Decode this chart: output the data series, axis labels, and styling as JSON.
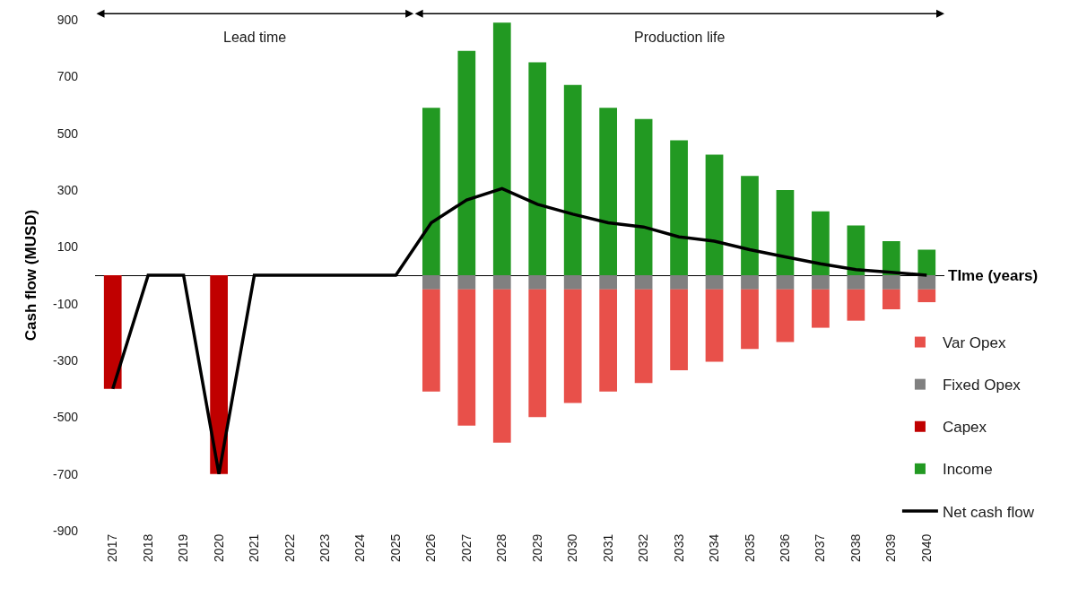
{
  "chart_data": {
    "type": "bar",
    "stacked": true,
    "categories": [
      "2017",
      "2018",
      "2019",
      "2020",
      "2021",
      "2022",
      "2023",
      "2024",
      "2025",
      "2026",
      "2027",
      "2028",
      "2029",
      "2030",
      "2031",
      "2032",
      "2033",
      "2034",
      "2035",
      "2036",
      "2037",
      "2038",
      "2039",
      "2040"
    ],
    "xlabel": "TIme (years)",
    "ylabel": "Cash flow (MUSD)",
    "ylim": [
      -900,
      900
    ],
    "yticks": [
      -900,
      -700,
      -500,
      -300,
      -100,
      100,
      300,
      500,
      700,
      900
    ],
    "legend": "bottom right",
    "annotations": [
      "Lead time",
      "Production life"
    ],
    "series": [
      {
        "name": "Net cash flow",
        "type": "line",
        "color": "#000000",
        "values": [
          -400,
          0,
          0,
          -700,
          0,
          0,
          0,
          0,
          0,
          185,
          265,
          305,
          250,
          215,
          185,
          170,
          135,
          120,
          90,
          65,
          40,
          20,
          10,
          0
        ]
      },
      {
        "name": "Income",
        "color": "#229922",
        "values": [
          null,
          null,
          null,
          null,
          null,
          null,
          null,
          null,
          null,
          590,
          790,
          890,
          750,
          670,
          590,
          550,
          475,
          425,
          350,
          300,
          225,
          175,
          120,
          90
        ]
      },
      {
        "name": "Capex",
        "color": "#c00000",
        "values": [
          -400,
          null,
          null,
          -700,
          null,
          null,
          null,
          null,
          null,
          null,
          null,
          null,
          null,
          null,
          null,
          null,
          null,
          null,
          null,
          null,
          null,
          null,
          null,
          null
        ]
      },
      {
        "name": "Fixed Opex",
        "color": "#808080",
        "values": [
          null,
          null,
          null,
          null,
          null,
          null,
          null,
          null,
          null,
          -50,
          -50,
          -50,
          -50,
          -50,
          -50,
          -50,
          -50,
          -50,
          -50,
          -50,
          -50,
          -50,
          -50,
          -50
        ]
      },
      {
        "name": "Var Opex",
        "color": "#e8504a",
        "values": [
          null,
          null,
          null,
          null,
          null,
          null,
          null,
          null,
          null,
          -360,
          -480,
          -540,
          -450,
          -400,
          -360,
          -330,
          -285,
          -255,
          -210,
          -185,
          -135,
          -110,
          -70,
          -45
        ]
      }
    ]
  }
}
